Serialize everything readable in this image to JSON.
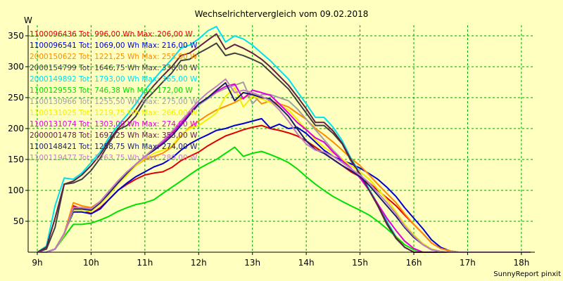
{
  "chart_data": {
    "type": "line",
    "title": "Wechselrichtervergleich vom 09.02.2018",
    "ylabel": "W",
    "xlabel": "",
    "credit": "SunnyReport pinxit",
    "x_ticks": [
      9,
      10,
      11,
      12,
      13,
      14,
      15,
      16,
      17,
      18
    ],
    "x_tick_labels": [
      "9h",
      "10h",
      "11h",
      "12h",
      "13h",
      "14h",
      "15h",
      "16h",
      "17h",
      "18h"
    ],
    "xlim": [
      8.83,
      18.25
    ],
    "ylim": [
      0,
      367
    ],
    "y_ticks": [
      50,
      100,
      150,
      200,
      250,
      300,
      350
    ],
    "y_tick_labels": [
      "50",
      "100",
      "150",
      "200",
      "250",
      "300",
      "350"
    ],
    "grid": true,
    "legend_position": "top-left",
    "x": [
      9.0,
      9.17,
      9.33,
      9.5,
      9.67,
      9.83,
      10.0,
      10.17,
      10.33,
      10.5,
      10.67,
      10.83,
      11.0,
      11.17,
      11.33,
      11.5,
      11.67,
      11.83,
      12.0,
      12.17,
      12.33,
      12.5,
      12.67,
      12.83,
      13.0,
      13.17,
      13.33,
      13.5,
      13.67,
      13.83,
      14.0,
      14.17,
      14.33,
      14.5,
      14.67,
      14.83,
      15.0,
      15.17,
      15.33,
      15.5,
      15.67,
      15.83,
      16.0,
      16.17,
      16.33,
      16.5,
      16.67,
      16.83,
      17.0,
      17.17,
      17.33,
      17.5,
      17.67,
      17.83,
      18.0,
      18.17
    ],
    "series": [
      {
        "name": "1100096436",
        "legend": "1100096436 Tot: 996,00 Wh Max: 206,00 W",
        "color": "#e00000",
        "values": [
          0,
          0,
          5,
          30,
          75,
          70,
          62,
          72,
          85,
          100,
          110,
          118,
          125,
          128,
          130,
          137,
          148,
          155,
          162,
          172,
          180,
          188,
          193,
          198,
          202,
          205,
          200,
          197,
          193,
          188,
          180,
          170,
          160,
          150,
          140,
          130,
          122,
          112,
          100,
          88,
          75,
          60,
          45,
          30,
          15,
          6,
          2,
          0,
          0,
          0,
          0,
          0,
          0,
          0,
          0,
          0
        ]
      },
      {
        "name": "1100096541",
        "legend": "1100096541 Tot: 1069,00 Wh Max: 216,00 W",
        "color": "#0000d0",
        "values": [
          0,
          0,
          5,
          30,
          65,
          65,
          62,
          70,
          85,
          100,
          112,
          122,
          130,
          138,
          143,
          152,
          165,
          175,
          183,
          190,
          197,
          200,
          205,
          208,
          212,
          216,
          201,
          207,
          200,
          202,
          192,
          178,
          165,
          155,
          148,
          143,
          136,
          127,
          118,
          105,
          90,
          72,
          55,
          38,
          20,
          8,
          2,
          0,
          0,
          0,
          0,
          0,
          0,
          0,
          0,
          0
        ]
      },
      {
        "name": "2000150622",
        "legend": "2000150622 Tot: 1221,25 Wh Max: 255,00 W",
        "color": "#ff8c00",
        "values": [
          0,
          0,
          5,
          30,
          80,
          75,
          72,
          82,
          95,
          112,
          126,
          140,
          150,
          155,
          160,
          170,
          188,
          202,
          212,
          222,
          230,
          236,
          242,
          250,
          255,
          240,
          245,
          240,
          235,
          225,
          215,
          200,
          190,
          178,
          165,
          152,
          140,
          125,
          110,
          95,
          80,
          62,
          45,
          30,
          15,
          6,
          2,
          0,
          0,
          0,
          0,
          0,
          0,
          0,
          0,
          0
        ]
      },
      {
        "name": "2000154799",
        "legend": "2000154799 Tot: 1646,75 Wh Max: 338,00 W",
        "color": "#404040",
        "values": [
          0,
          5,
          40,
          110,
          112,
          118,
          132,
          152,
          176,
          198,
          205,
          220,
          245,
          260,
          275,
          290,
          310,
          312,
          322,
          330,
          338,
          318,
          322,
          318,
          312,
          305,
          292,
          278,
          264,
          245,
          225,
          205,
          205,
          192,
          175,
          148,
          125,
          100,
          75,
          45,
          22,
          8,
          0,
          0,
          0,
          0,
          0,
          0,
          0,
          0,
          0,
          0,
          0,
          0,
          0,
          0
        ]
      },
      {
        "name": "2000149892",
        "legend": "2000149892 Tot: 1793,00 Wh Max: 365,00 W",
        "color": "#00e0f0",
        "values": [
          0,
          10,
          75,
          120,
          118,
          128,
          145,
          162,
          185,
          205,
          222,
          240,
          262,
          280,
          296,
          312,
          330,
          335,
          345,
          358,
          365,
          340,
          350,
          345,
          335,
          322,
          310,
          295,
          280,
          260,
          240,
          218,
          218,
          202,
          180,
          152,
          128,
          102,
          78,
          50,
          25,
          8,
          0,
          0,
          0,
          0,
          0,
          0,
          0,
          0,
          0,
          0,
          0,
          0,
          0,
          0
        ]
      },
      {
        "name": "1100129553",
        "legend": "1100129553 Tot: 746,38 Wh Max: 172,00 W",
        "color": "#00e000",
        "values": [
          0,
          0,
          5,
          25,
          45,
          45,
          47,
          52,
          58,
          66,
          72,
          77,
          80,
          85,
          95,
          105,
          115,
          125,
          135,
          143,
          150,
          160,
          170,
          155,
          160,
          163,
          158,
          152,
          145,
          135,
          122,
          110,
          100,
          90,
          82,
          75,
          68,
          60,
          50,
          38,
          25,
          12,
          4,
          0,
          0,
          0,
          0,
          0,
          0,
          0,
          0,
          0,
          0,
          0,
          0,
          0
        ]
      },
      {
        "name": "1100130966",
        "legend": "1100130966 Tot: 1255,50 Wh Max: 275,00 W",
        "color": "#a0a0a0",
        "values": [
          0,
          0,
          5,
          30,
          70,
          70,
          68,
          80,
          95,
          112,
          128,
          142,
          155,
          165,
          175,
          188,
          205,
          222,
          238,
          248,
          258,
          265,
          270,
          275,
          240,
          255,
          255,
          250,
          245,
          232,
          215,
          198,
          182,
          165,
          150,
          140,
          130,
          118,
          102,
          85,
          65,
          45,
          28,
          14,
          5,
          1,
          0,
          0,
          0,
          0,
          0,
          0,
          0,
          0,
          0,
          0
        ]
      },
      {
        "name": "1100131025",
        "legend": "1100131025 Tot: 1219,75 Wh Max: 266,00 W",
        "color": "#f0f000",
        "values": [
          0,
          0,
          5,
          28,
          68,
          68,
          66,
          78,
          92,
          110,
          125,
          140,
          152,
          160,
          165,
          172,
          190,
          200,
          205,
          215,
          225,
          252,
          266,
          235,
          252,
          248,
          242,
          238,
          230,
          215,
          198,
          182,
          170,
          160,
          150,
          140,
          130,
          118,
          102,
          85,
          65,
          45,
          28,
          14,
          5,
          1,
          0,
          0,
          0,
          0,
          0,
          0,
          0,
          0,
          0,
          0
        ]
      },
      {
        "name": "1100131074",
        "legend": "1100131074 Tot: 1303,00 Wh Max: 274,00 W",
        "color": "#e000e0",
        "values": [
          0,
          0,
          5,
          30,
          72,
          72,
          70,
          82,
          98,
          115,
          130,
          142,
          155,
          165,
          178,
          192,
          208,
          225,
          240,
          250,
          260,
          268,
          272,
          248,
          262,
          258,
          254,
          240,
          225,
          210,
          198,
          185,
          178,
          162,
          148,
          136,
          120,
          100,
          78,
          55,
          35,
          18,
          6,
          0,
          0,
          0,
          0,
          0,
          0,
          0,
          0,
          0,
          0,
          0,
          0,
          0
        ]
      },
      {
        "name": "2000001478",
        "legend": "2000001478 Tot: 1697,25 Wh Max: 353,00 W",
        "color": "#602040",
        "values": [
          0,
          8,
          55,
          110,
          115,
          125,
          140,
          158,
          180,
          200,
          214,
          230,
          252,
          270,
          285,
          300,
          318,
          322,
          332,
          343,
          353,
          328,
          336,
          330,
          322,
          312,
          300,
          285,
          270,
          252,
          232,
          210,
          210,
          196,
          176,
          150,
          126,
          100,
          76,
          47,
          23,
          8,
          0,
          0,
          0,
          0,
          0,
          0,
          0,
          0,
          0,
          0,
          0,
          0,
          0,
          0
        ]
      },
      {
        "name": "1100148421",
        "legend": "1100148421 Tot: 1258,75 Wh Max: 274,00 W",
        "color": "#1c1c70",
        "values": [
          0,
          0,
          5,
          30,
          70,
          70,
          68,
          80,
          95,
          112,
          128,
          142,
          155,
          165,
          175,
          188,
          205,
          222,
          240,
          250,
          262,
          274,
          245,
          258,
          255,
          250,
          248,
          235,
          220,
          200,
          180,
          166,
          160,
          150,
          140,
          132,
          122,
          108,
          92,
          75,
          58,
          40,
          24,
          12,
          4,
          1,
          0,
          0,
          0,
          0,
          0,
          0,
          0,
          0,
          0,
          0
        ]
      },
      {
        "name": "1100119477",
        "legend": "1100119477 Tot: 1263,75 Wh Max: 280,00 W",
        "color": "#c080c0",
        "values": [
          0,
          0,
          5,
          30,
          72,
          72,
          70,
          82,
          98,
          115,
          130,
          142,
          155,
          168,
          180,
          195,
          212,
          228,
          245,
          258,
          268,
          280,
          258,
          262,
          258,
          252,
          245,
          230,
          212,
          192,
          175,
          165,
          162,
          155,
          145,
          135,
          125,
          112,
          96,
          80,
          62,
          42,
          26,
          12,
          4,
          1,
          0,
          0,
          0,
          0,
          0,
          0,
          0,
          0,
          0,
          0
        ]
      }
    ]
  }
}
